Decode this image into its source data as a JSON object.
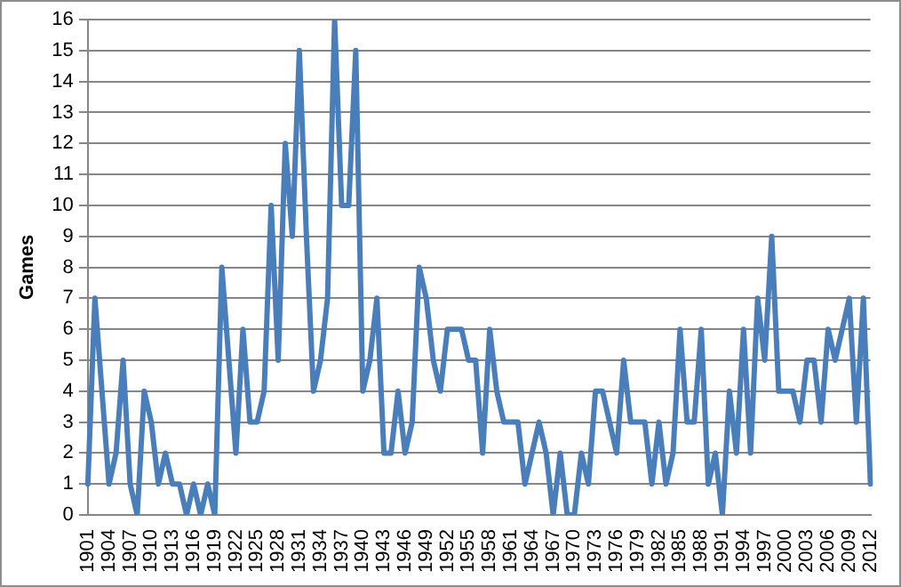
{
  "chart_data": {
    "type": "line",
    "ylabel": "Games",
    "categories": [
      "1901",
      null,
      null,
      "1904",
      null,
      null,
      "1907",
      null,
      null,
      "1910",
      null,
      null,
      "1913",
      null,
      null,
      "1916",
      null,
      null,
      "1919",
      null,
      null,
      "1922",
      null,
      null,
      "1925",
      null,
      null,
      "1928",
      null,
      null,
      "1931",
      null,
      null,
      "1934",
      null,
      null,
      "1937",
      null,
      null,
      "1940",
      null,
      null,
      "1943",
      null,
      null,
      "1946",
      null,
      null,
      "1949",
      null,
      null,
      "1952",
      null,
      null,
      "1955",
      null,
      null,
      "1958",
      null,
      null,
      "1961",
      null,
      null,
      "1964",
      null,
      null,
      "1967",
      null,
      null,
      "1970",
      null,
      null,
      "1973",
      null,
      null,
      "1976",
      null,
      null,
      "1979",
      null,
      null,
      "1982",
      null,
      null,
      "1985",
      null,
      null,
      "1988",
      null,
      null,
      "1991",
      null,
      null,
      "1994",
      null,
      null,
      "1997",
      null,
      null,
      "2000",
      null,
      null,
      "2003",
      null,
      null,
      "2006",
      null,
      null,
      "2009",
      null,
      null,
      "2012"
    ],
    "series": [
      {
        "color": "#4a7ebb",
        "values": [
          1,
          7,
          4,
          1,
          2,
          5,
          1,
          0,
          4,
          3,
          1,
          2,
          1,
          1,
          0,
          1,
          0,
          1,
          0,
          8,
          5,
          2,
          6,
          3,
          3,
          4,
          10,
          5,
          12,
          9,
          15,
          9,
          4,
          5,
          7,
          16,
          10,
          10,
          15,
          4,
          5,
          7,
          2,
          2,
          4,
          2,
          3,
          8,
          7,
          5,
          4,
          6,
          6,
          6,
          5,
          5,
          2,
          6,
          4,
          3,
          3,
          3,
          1,
          2,
          3,
          2,
          0,
          2,
          0,
          0,
          2,
          1,
          4,
          4,
          3,
          2,
          5,
          3,
          3,
          3,
          1,
          3,
          1,
          2,
          6,
          3,
          3,
          6,
          1,
          2,
          0,
          4,
          2,
          6,
          2,
          7,
          5,
          9,
          4,
          4,
          4,
          3,
          5,
          5,
          3,
          6,
          5,
          6,
          7,
          3,
          7,
          1
        ]
      }
    ],
    "ylim": [
      0,
      16
    ],
    "yticks": [
      0,
      1,
      2,
      3,
      4,
      5,
      6,
      7,
      8,
      9,
      10,
      11,
      12,
      13,
      14,
      15,
      16
    ],
    "grid": "y",
    "legend": false,
    "marker": "none",
    "line_style": "solid"
  }
}
